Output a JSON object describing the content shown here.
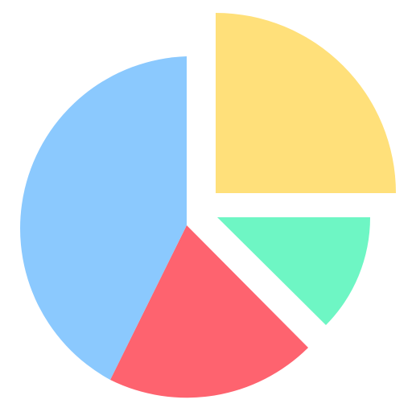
{
  "icon": {
    "name": "pie-chart-icon",
    "slices": [
      {
        "name": "yellow-slice",
        "share": 0.25,
        "color": "#FFE07A",
        "exploded": true
      },
      {
        "name": "green-slice",
        "share": 0.125,
        "color": "#6EF6C4",
        "exploded": true
      },
      {
        "name": "red-slice",
        "share": 0.18,
        "color": "#FE636F",
        "exploded": false
      },
      {
        "name": "blue-slice",
        "share": 0.445,
        "color": "#8BC9FE",
        "exploded": false
      }
    ]
  }
}
